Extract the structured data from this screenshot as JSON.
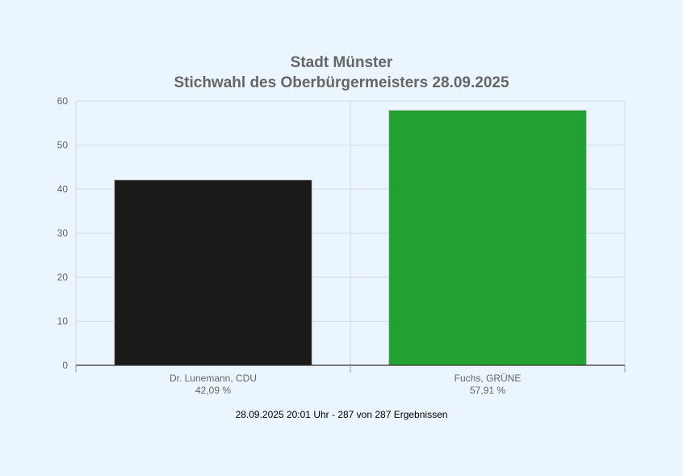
{
  "chart_data": {
    "type": "bar",
    "title": "Stadt Münster",
    "subtitle": "Stichwahl des Oberbürgermeisters 28.09.2025",
    "categories": [
      "Dr. Lunemann, CDU",
      "Fuchs, GRÜNE"
    ],
    "value_labels": [
      "42,09 %",
      "57,91 %"
    ],
    "values": [
      42.09,
      57.91
    ],
    "colors": [
      "#1a1a1a",
      "#21a131"
    ],
    "ylim": [
      0,
      60
    ],
    "yticks": [
      0,
      10,
      20,
      30,
      40,
      50,
      60
    ],
    "grid": true,
    "footer": "28.09.2025 20:01 Uhr - 287 von 287 Ergebnissen"
  }
}
